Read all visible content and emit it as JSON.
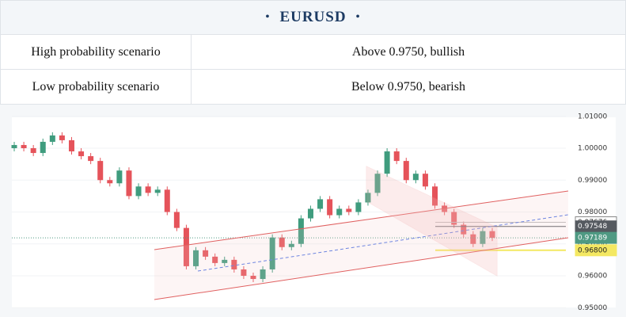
{
  "header": {
    "title": "EURUSD"
  },
  "table": {
    "rows": [
      [
        "High probability scenario",
        "Above 0.9750, bullish"
      ],
      [
        "Low probability scenario",
        "Below 0.9750, bearish"
      ]
    ]
  },
  "chart_data": {
    "type": "candlestick",
    "up_color": "#3f9c7e",
    "down_color": "#e5535a",
    "open": [
      1,
      1.001,
      1,
      0.9985,
      1.002,
      1.004,
      1.0025,
      0.999,
      0.9975,
      0.996,
      0.99,
      0.989,
      0.993,
      0.985,
      0.988,
      0.986,
      0.987,
      0.98,
      0.975,
      0.963,
      0.968,
      0.966,
      0.964,
      0.965,
      0.962,
      0.96,
      0.959,
      0.962,
      0.972,
      0.969,
      0.97,
      0.978,
      0.981,
      0.984,
      0.979,
      0.981,
      0.98,
      0.983,
      0.986,
      0.992,
      0.999,
      0.996,
      0.99,
      0.992,
      0.988,
      0.982,
      0.98,
      0.976,
      0.973,
      0.97,
      0.974
    ],
    "high": [
      1.002,
      1.002,
      1.001,
      1.003,
      1.005,
      1.005,
      1.0035,
      1,
      0.9985,
      0.997,
      0.991,
      0.994,
      0.994,
      0.989,
      0.989,
      0.988,
      0.988,
      0.981,
      0.976,
      0.969,
      0.969,
      0.967,
      0.966,
      0.966,
      0.963,
      0.961,
      0.963,
      0.973,
      0.973,
      0.971,
      0.979,
      0.982,
      0.985,
      0.985,
      0.982,
      0.982,
      0.984,
      0.987,
      0.993,
      1,
      1,
      0.997,
      0.993,
      0.993,
      0.989,
      0.983,
      0.981,
      0.977,
      0.974,
      0.975,
      0.975
    ],
    "low": [
      0.999,
      0.999,
      0.9975,
      0.9975,
      1.001,
      1.0015,
      0.998,
      0.9965,
      0.995,
      0.989,
      0.988,
      0.988,
      0.984,
      0.984,
      0.985,
      0.985,
      0.979,
      0.974,
      0.962,
      0.962,
      0.965,
      0.963,
      0.963,
      0.961,
      0.959,
      0.958,
      0.958,
      0.961,
      0.968,
      0.968,
      0.969,
      0.977,
      0.98,
      0.978,
      0.978,
      0.979,
      0.979,
      0.982,
      0.985,
      0.991,
      0.995,
      0.989,
      0.989,
      0.987,
      0.981,
      0.979,
      0.975,
      0.972,
      0.969,
      0.969,
      0.9709
    ],
    "close": [
      1.001,
      1,
      0.9985,
      1.002,
      1.004,
      1.0025,
      0.999,
      0.9975,
      0.996,
      0.99,
      0.989,
      0.993,
      0.985,
      0.988,
      0.986,
      0.987,
      0.98,
      0.975,
      0.963,
      0.968,
      0.966,
      0.964,
      0.965,
      0.962,
      0.96,
      0.959,
      0.962,
      0.972,
      0.969,
      0.97,
      0.978,
      0.981,
      0.984,
      0.979,
      0.981,
      0.98,
      0.983,
      0.986,
      0.992,
      0.999,
      0.996,
      0.99,
      0.992,
      0.988,
      0.982,
      0.98,
      0.976,
      0.973,
      0.97,
      0.974,
      0.9719
    ],
    "ylim": [
      0.95,
      1.01
    ],
    "yticks": [
      {
        "value": 0.95,
        "label": "0.95000"
      },
      {
        "value": 0.96,
        "label": "0.96000"
      },
      {
        "value": 0.97,
        "label": "0.97000"
      },
      {
        "value": 0.98,
        "label": "0.98000"
      },
      {
        "value": 0.99,
        "label": "0.99000"
      },
      {
        "value": 1,
        "label": "1.00000"
      },
      {
        "value": 1.01,
        "label": "1.01000"
      }
    ],
    "price_levels": [
      {
        "value": 0.97676,
        "color": "#ffffff"
      },
      {
        "value": 0.97548,
        "color": "#555a60"
      },
      {
        "value": 0.97189,
        "color": "#4f9a83"
      },
      {
        "value": 0.968,
        "label": "0.96800",
        "color": "#f4e862"
      }
    ]
  }
}
